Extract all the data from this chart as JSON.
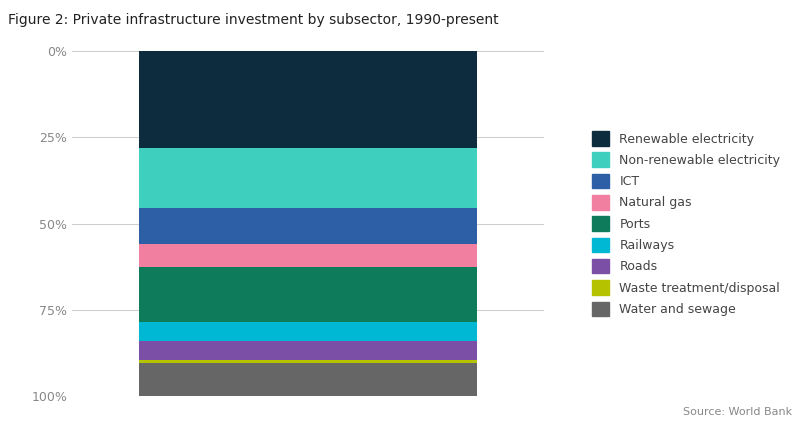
{
  "title": "Figure 2: Private infrastructure investment by subsector, 1990-present",
  "source": "Source: World Bank",
  "segments": [
    {
      "label": "Renewable electricity",
      "value": 28.0,
      "color": "#0d2d3e"
    },
    {
      "label": "Non-renewable electricity",
      "value": 17.5,
      "color": "#3ecfbe"
    },
    {
      "label": "ICT",
      "value": 10.5,
      "color": "#2d5fa6"
    },
    {
      "label": "Natural gas",
      "value": 6.5,
      "color": "#f07fa0"
    },
    {
      "label": "Ports",
      "value": 16.0,
      "color": "#0e7c5a"
    },
    {
      "label": "Railways",
      "value": 5.5,
      "color": "#00b8d4"
    },
    {
      "label": "Roads",
      "value": 5.5,
      "color": "#7b4fa6"
    },
    {
      "label": "Waste treatment/disposal",
      "value": 1.0,
      "color": "#b5c200"
    },
    {
      "label": "Water and sewage",
      "value": 9.5,
      "color": "#666666"
    }
  ],
  "yticks": [
    0,
    25,
    50,
    75,
    100
  ],
  "ytick_labels": [
    "0%",
    "25%",
    "50%",
    "75%",
    "100%"
  ],
  "background_color": "#ffffff",
  "title_fontsize": 10,
  "legend_fontsize": 9,
  "tick_fontsize": 9,
  "source_fontsize": 8
}
